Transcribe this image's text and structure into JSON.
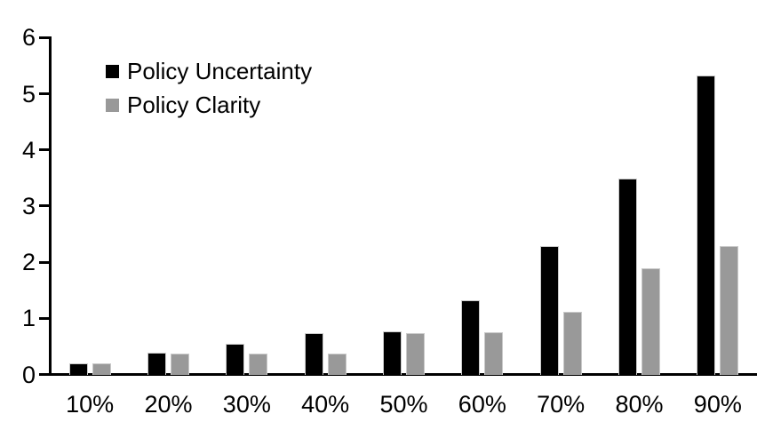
{
  "chart_data": {
    "type": "bar",
    "title": "",
    "xlabel": "",
    "ylabel": "",
    "categories": [
      "10%",
      "20%",
      "30%",
      "40%",
      "50%",
      "60%",
      "70%",
      "80%",
      "90%"
    ],
    "series": [
      {
        "name": "Policy Uncertainty",
        "color": "#000000",
        "values": [
          0.2,
          0.4,
          0.55,
          0.75,
          0.77,
          1.33,
          2.3,
          3.5,
          5.33
        ]
      },
      {
        "name": "Policy Clarity",
        "color": "#999999",
        "values": [
          0.2,
          0.38,
          0.38,
          0.38,
          0.75,
          0.76,
          1.13,
          1.9,
          2.29
        ]
      }
    ],
    "ylim": [
      0,
      6
    ],
    "yticks": [
      0,
      1,
      2,
      3,
      4,
      5,
      6
    ],
    "grid": false,
    "legend_position": "top-left",
    "axis_color": "#000000",
    "background_color": "#ffffff",
    "bar_outline_color": "#c9c9c9"
  }
}
